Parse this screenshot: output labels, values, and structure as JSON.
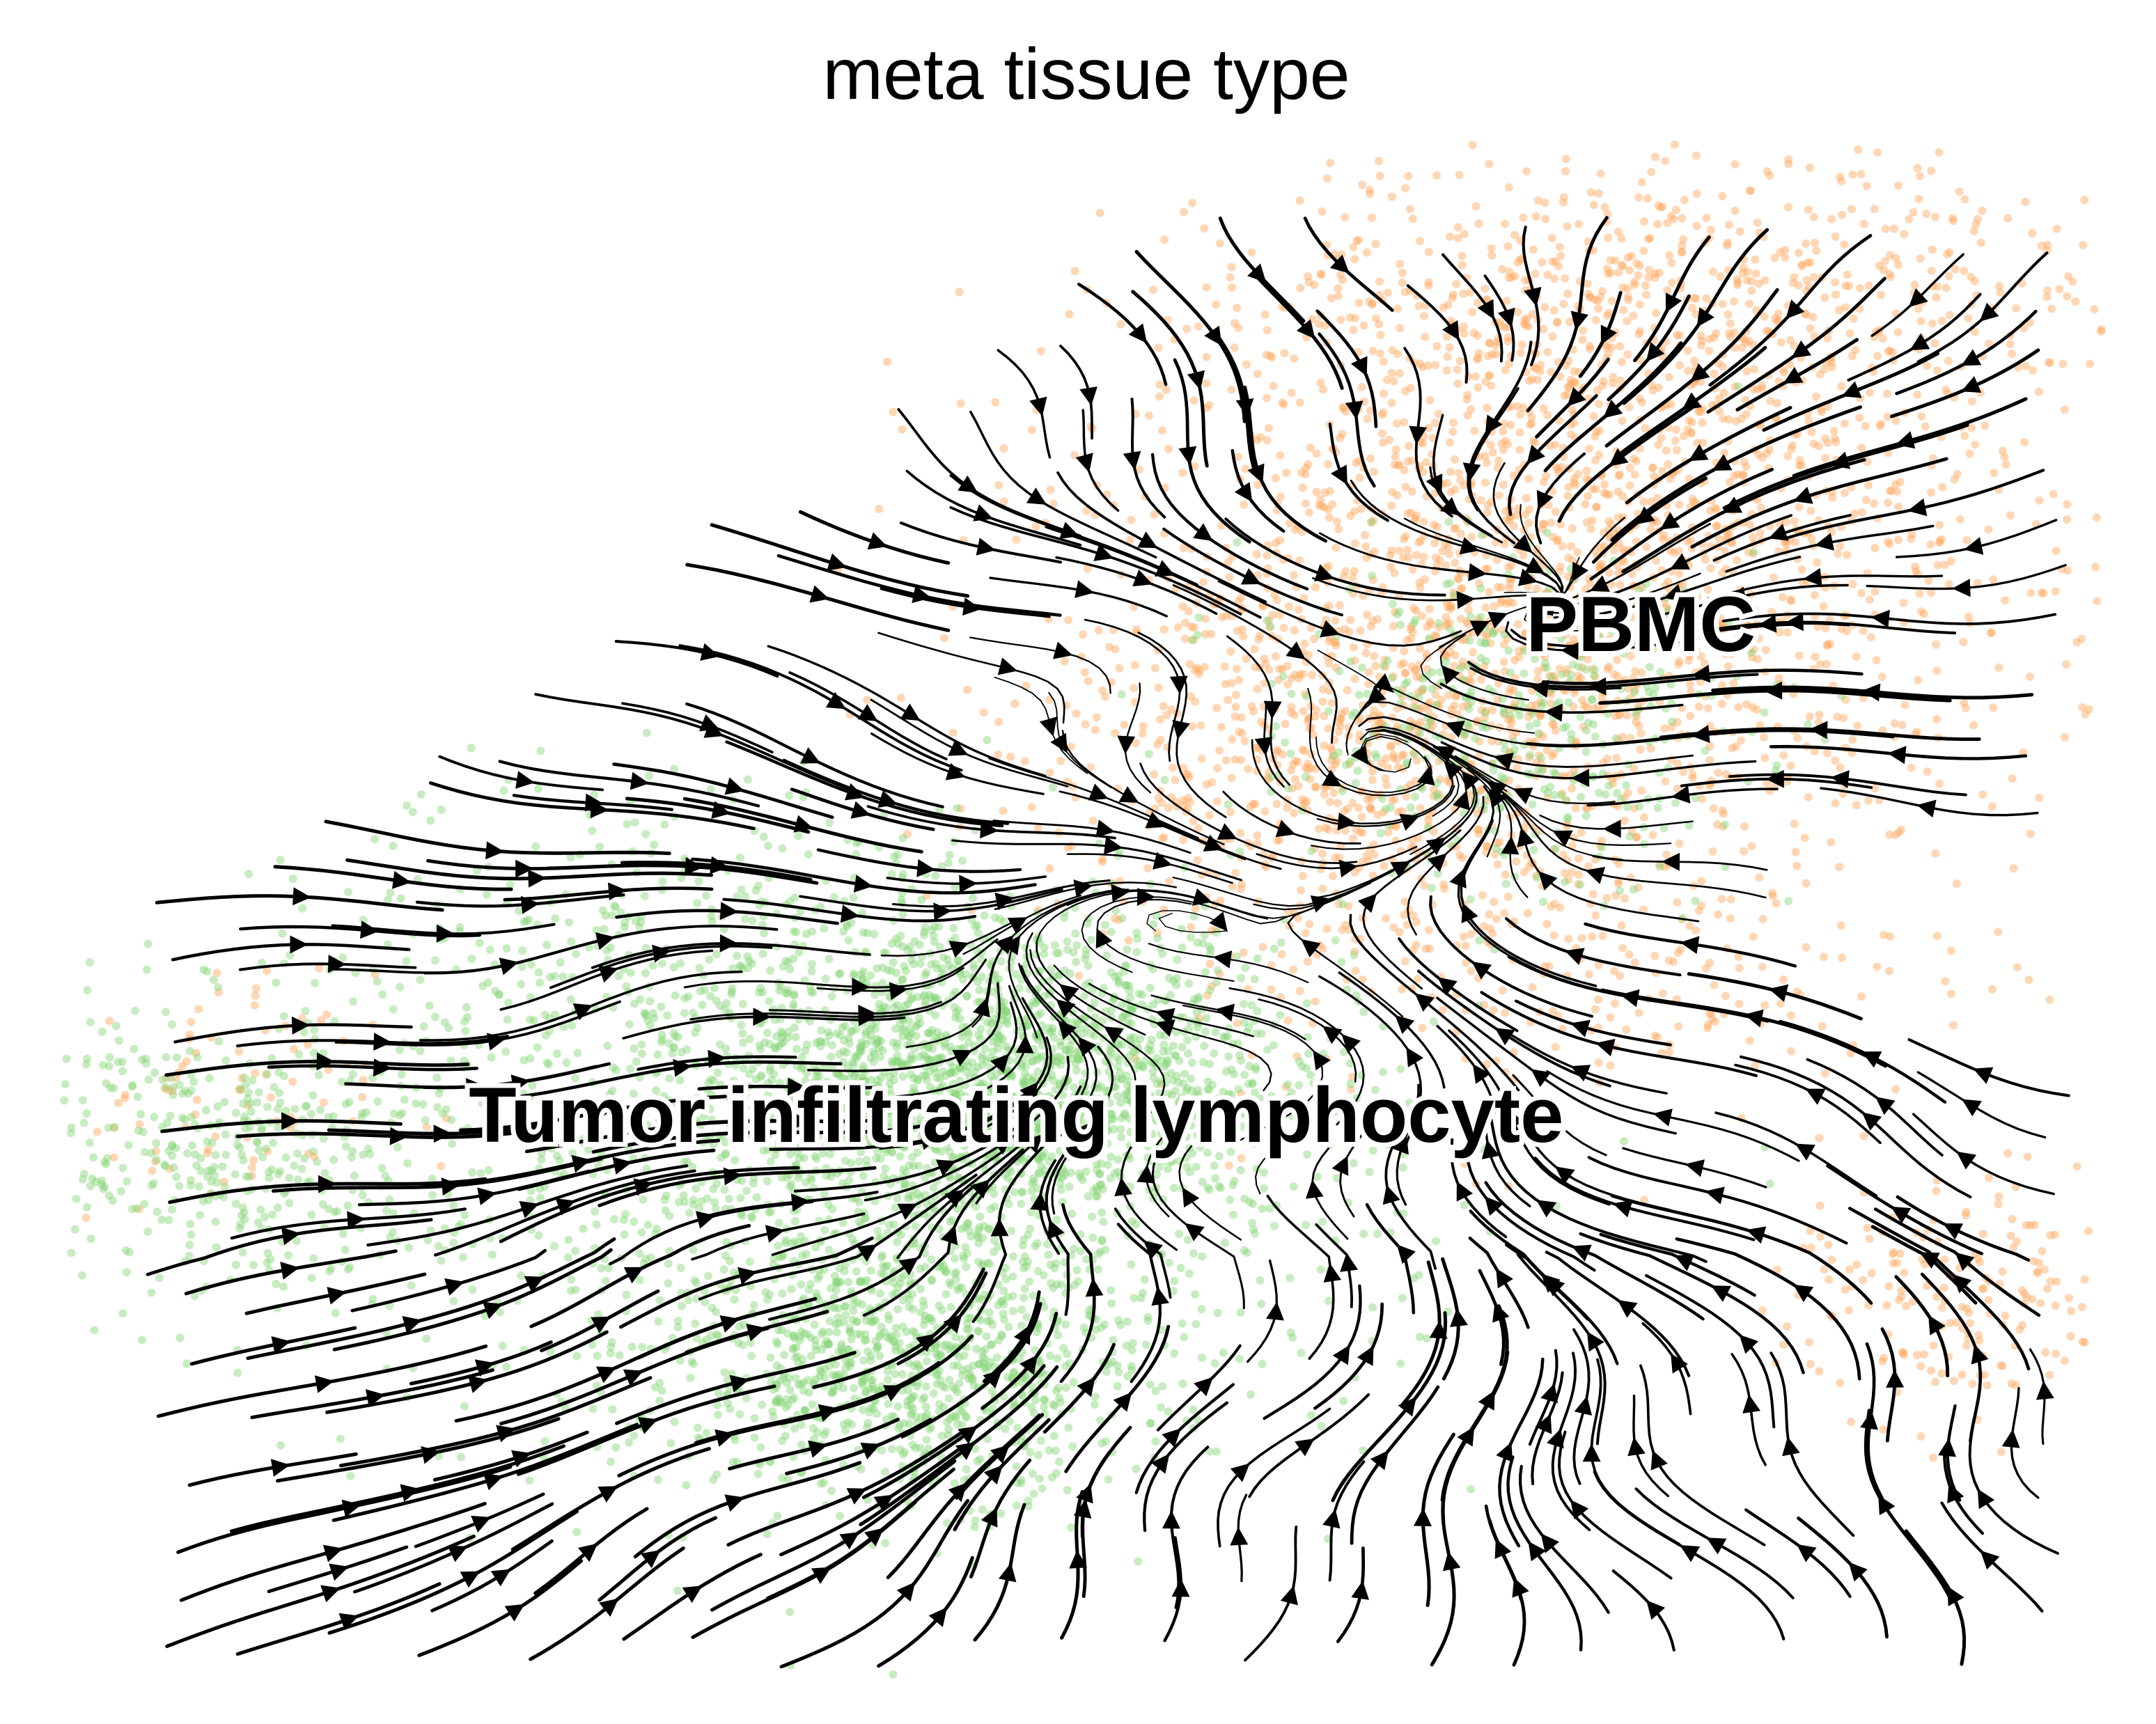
{
  "chart_data": {
    "type": "scatter",
    "subtype": "embedding with velocity streamlines",
    "title": "meta tissue type",
    "xlabel": "",
    "ylabel": "",
    "axes_visible": false,
    "grid": false,
    "legend": "none",
    "xlim": [
      0,
      100
    ],
    "ylim": [
      0,
      100
    ],
    "series": [
      {
        "name": "PBMC",
        "color": "#ffa75c",
        "clusters": [
          {
            "center": [
              74,
              73
            ],
            "spread": [
              11,
              10
            ],
            "count": 1900
          },
          {
            "center": [
              63,
              60
            ],
            "spread": [
              8,
              7
            ],
            "count": 700
          },
          {
            "center": [
              79,
              90
            ],
            "spread": [
              10,
              4
            ],
            "count": 450
          },
          {
            "center": [
              92,
              25
            ],
            "spread": [
              4,
              4
            ],
            "count": 180
          },
          {
            "center": [
              8,
              38
            ],
            "spread": [
              4,
              4
            ],
            "count": 90
          },
          {
            "center": [
              74,
              47
            ],
            "spread": [
              10,
              6
            ],
            "count": 220
          }
        ]
      },
      {
        "name": "Tumor infiltrating lymphocyte",
        "color": "#84d475",
        "clusters": [
          {
            "center": [
              46,
              40
            ],
            "spread": [
              7,
              5
            ],
            "count": 1500
          },
          {
            "center": [
              42,
              21
            ],
            "spread": [
              5,
              4
            ],
            "count": 750
          },
          {
            "center": [
              40,
              32
            ],
            "spread": [
              12,
              9
            ],
            "count": 1300
          },
          {
            "center": [
              9,
              35
            ],
            "spread": [
              6,
              5
            ],
            "count": 450
          },
          {
            "center": [
              70,
              62
            ],
            "spread": [
              6,
              5
            ],
            "count": 420
          },
          {
            "center": [
              30,
              49
            ],
            "spread": [
              8,
              5
            ],
            "count": 260
          }
        ]
      }
    ],
    "annotations": [
      {
        "text": "PBMC",
        "x": 76.8,
        "y": 66.6
      },
      {
        "text": "Tumor infiltrating lymphocyte",
        "x": 46.8,
        "y": 35.4
      }
    ]
  }
}
